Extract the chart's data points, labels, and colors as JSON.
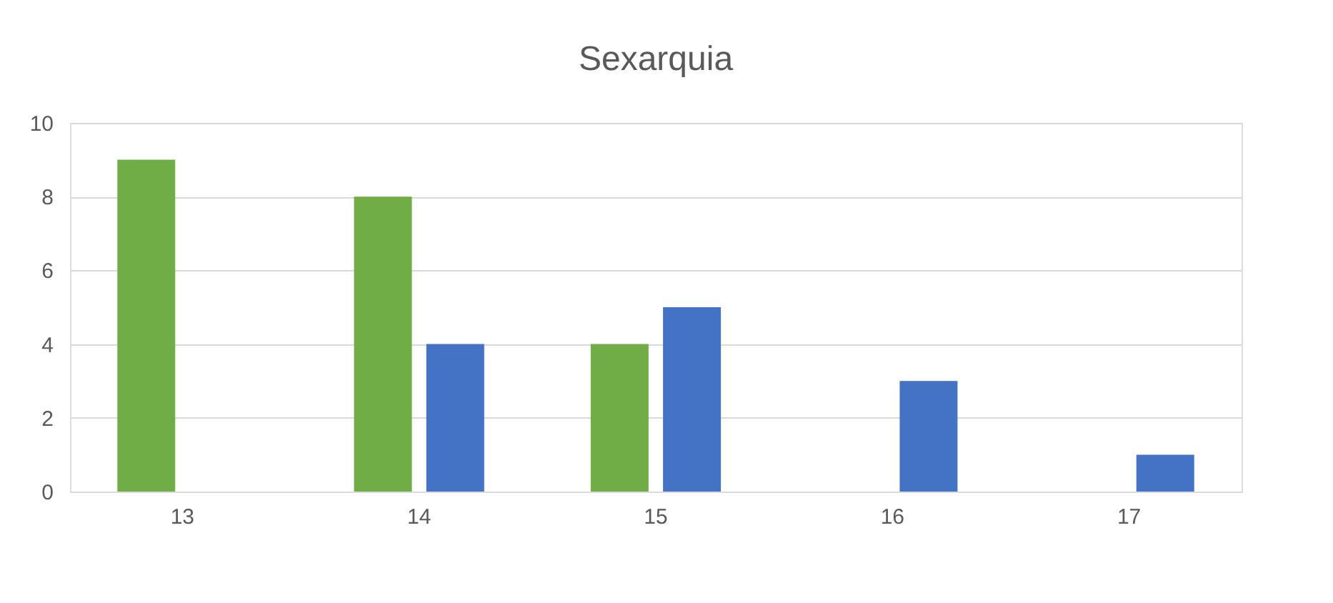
{
  "chart_data": {
    "type": "bar",
    "title": "Sexarquia",
    "categories": [
      "13",
      "14",
      "15",
      "16",
      "17"
    ],
    "series": [
      {
        "color": "#70ad47",
        "values": [
          9,
          8,
          4,
          0,
          0
        ]
      },
      {
        "color": "#4472c4",
        "values": [
          0,
          4,
          5,
          3,
          1
        ]
      }
    ],
    "ylim": [
      0,
      10
    ],
    "yticks": [
      0,
      2,
      4,
      6,
      8,
      10
    ],
    "grid": "y"
  }
}
